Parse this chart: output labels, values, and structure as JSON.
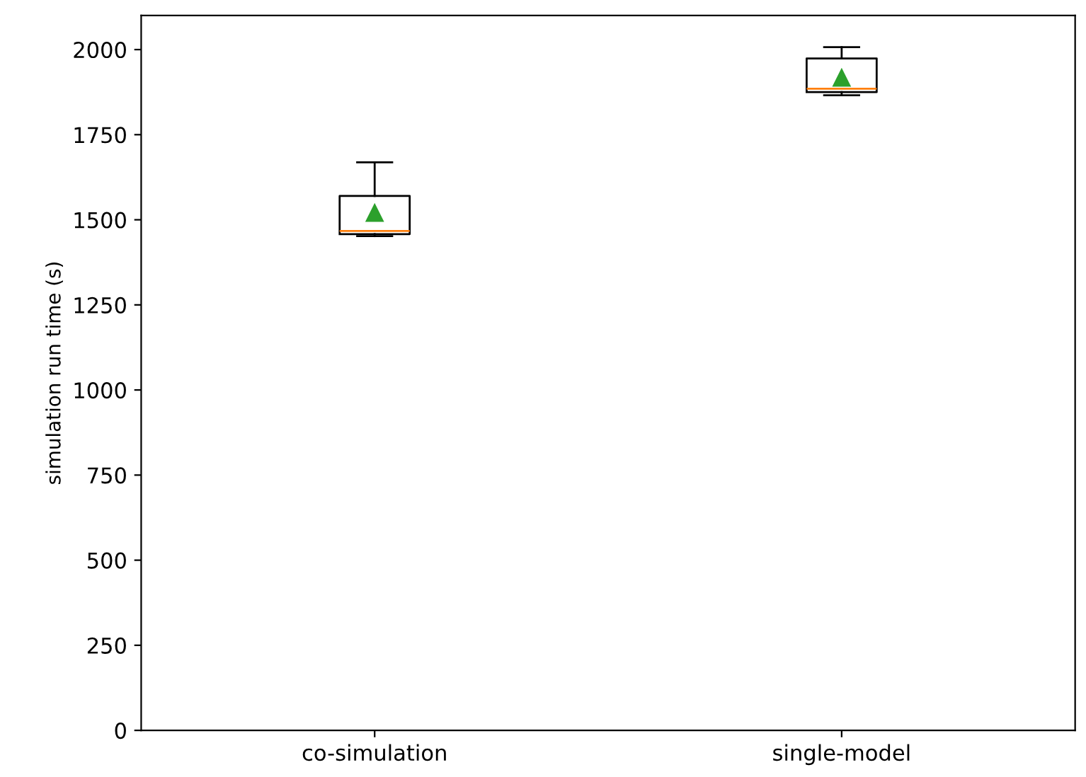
{
  "chart_data": {
    "type": "box",
    "ylabel": "simulation run time (s)",
    "categories": [
      "co-simulation",
      "single-model"
    ],
    "boxes": [
      {
        "low": 1452,
        "q1": 1458,
        "median": 1467,
        "q3": 1570,
        "high": 1669,
        "mean": 1520
      },
      {
        "low": 1866,
        "q1": 1875,
        "median": 1885,
        "q3": 1974,
        "high": 2007,
        "mean": 1917
      }
    ],
    "ylim": [
      0,
      2100
    ],
    "yticks": [
      0,
      250,
      500,
      750,
      1000,
      1250,
      1500,
      1750,
      2000
    ],
    "grid": false
  }
}
